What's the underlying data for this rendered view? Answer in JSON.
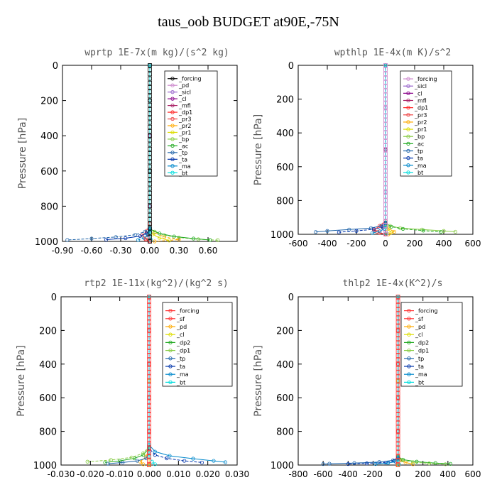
{
  "title": "taus_oob  BUDGET at90E,-75N",
  "chart_data": [
    {
      "type": "line",
      "title": "wprtp   1E-7x(m kg)/(s^2 kg)",
      "ylabel": "Pressure [hPa]",
      "xlim": [
        -0.9,
        0.9
      ],
      "ylim": [
        0,
        1000
      ],
      "y_inverted": true,
      "xticks": [
        -0.9,
        -0.6,
        -0.3,
        0.0,
        0.3,
        0.6
      ],
      "xtick_labels": [
        "-0.90",
        "-0.60",
        "-0.30",
        "0.00",
        "0.30",
        "0.60"
      ],
      "yticks": [
        0,
        200,
        400,
        600,
        800,
        1000
      ],
      "ytick_labels": [
        "0",
        "200",
        "400",
        "600",
        "800",
        "1000"
      ],
      "series": [
        {
          "name": "_forcing",
          "color": "#000000",
          "x": [
            0,
            0,
            0,
            0,
            0,
            0
          ],
          "y": [
            0,
            200,
            400,
            600,
            800,
            1000
          ]
        },
        {
          "name": "_pd",
          "color": "#cc88cc",
          "x": [
            0,
            0,
            0,
            0
          ],
          "y": [
            0,
            400,
            800,
            1000
          ]
        },
        {
          "name": "_sicl",
          "color": "#9966cc",
          "x": [
            0,
            0,
            0,
            0
          ],
          "y": [
            0,
            400,
            800,
            1000
          ]
        },
        {
          "name": "_cl",
          "color": "#880088",
          "x": [
            0,
            0,
            0,
            0
          ],
          "y": [
            0,
            400,
            800,
            1000
          ]
        },
        {
          "name": "_mfl",
          "color": "#aa2266",
          "x": [
            0,
            0,
            0,
            0
          ],
          "y": [
            0,
            400,
            800,
            1000
          ]
        },
        {
          "name": "_dp1",
          "color": "#ff2222",
          "x": [
            0,
            0,
            -0.03,
            -0.08,
            -0.04,
            0
          ],
          "y": [
            0,
            900,
            940,
            965,
            990,
            1000
          ]
        },
        {
          "name": "_pr3",
          "color": "#ee4444",
          "x": [
            0,
            0,
            -0.02,
            -0.05,
            0
          ],
          "y": [
            0,
            930,
            960,
            985,
            1000
          ]
        },
        {
          "name": "_pr2",
          "color": "#ffaa00",
          "x": [
            0,
            0,
            0.05,
            0.15,
            0.3,
            0.05
          ],
          "y": [
            0,
            920,
            950,
            975,
            990,
            1000
          ]
        },
        {
          "name": "_pr1",
          "color": "#dddd00",
          "x": [
            0,
            0,
            0.03,
            0.1,
            0.2
          ],
          "y": [
            0,
            930,
            960,
            980,
            995
          ]
        },
        {
          "name": "_bp",
          "color": "#88cc44",
          "x": [
            0,
            0,
            0.05,
            0.15,
            0.3,
            0.5,
            0.7
          ],
          "y": [
            0,
            920,
            945,
            965,
            978,
            988,
            993
          ]
        },
        {
          "name": "_ac",
          "color": "#22aa22",
          "x": [
            0,
            0,
            0.1,
            0.25,
            0.45,
            0.62
          ],
          "y": [
            0,
            930,
            955,
            972,
            984,
            992
          ]
        },
        {
          "name": "_tp",
          "color": "#2266aa",
          "x": [
            0,
            0,
            -0.05,
            -0.15,
            -0.35,
            -0.6,
            -0.85
          ],
          "y": [
            0,
            920,
            945,
            962,
            975,
            984,
            992
          ]
        },
        {
          "name": "_ta",
          "color": "#0033aa",
          "x": [
            0,
            0,
            -0.03,
            -0.1,
            -0.25,
            -0.45
          ],
          "y": [
            0,
            930,
            955,
            970,
            982,
            990
          ]
        },
        {
          "name": "_ma",
          "color": "#0088cc",
          "x": [
            0,
            0,
            -0.02,
            -0.06,
            -0.12
          ],
          "y": [
            0,
            940,
            965,
            980,
            992
          ]
        },
        {
          "name": "_bt",
          "color": "#00dddd",
          "x": [
            0,
            0,
            0.01
          ],
          "y": [
            0,
            950,
            990
          ]
        }
      ]
    },
    {
      "type": "line",
      "title": "wpthlp   1E-4x(m K)/s^2",
      "ylabel": "Pressure [hPa]",
      "xlim": [
        -600,
        600
      ],
      "ylim": [
        0,
        1000
      ],
      "y_inverted": true,
      "xticks": [
        -600,
        -400,
        -200,
        0,
        200,
        400,
        600
      ],
      "xtick_labels": [
        "-600",
        "-400",
        "-200",
        "0",
        "200",
        "400",
        "600"
      ],
      "yticks": [
        0,
        200,
        400,
        600,
        800,
        1000
      ],
      "ytick_labels": [
        "0",
        "200",
        "400",
        "600",
        "800",
        "1000"
      ],
      "series": [
        {
          "name": "_forcing",
          "color": "#cc88cc",
          "x": [
            0,
            0,
            0,
            0,
            0
          ],
          "y": [
            0,
            250,
            500,
            750,
            1000
          ]
        },
        {
          "name": "_sicl",
          "color": "#9966cc",
          "x": [
            0,
            0,
            0
          ],
          "y": [
            0,
            500,
            1000
          ]
        },
        {
          "name": "_cl",
          "color": "#880088",
          "x": [
            0,
            0,
            0
          ],
          "y": [
            0,
            500,
            1000
          ]
        },
        {
          "name": "_mfl",
          "color": "#aa2266",
          "x": [
            0,
            0,
            0
          ],
          "y": [
            0,
            500,
            1000
          ]
        },
        {
          "name": "_dp1",
          "color": "#ff2222",
          "x": [
            0,
            0,
            -40,
            -80,
            -40,
            0
          ],
          "y": [
            0,
            920,
            950,
            975,
            992,
            1000
          ]
        },
        {
          "name": "_pr3",
          "color": "#ee4444",
          "x": [
            0,
            0,
            -20,
            -60,
            0
          ],
          "y": [
            0,
            930,
            960,
            985,
            1000
          ]
        },
        {
          "name": "_pr2",
          "color": "#ffaa00",
          "x": [
            0,
            0,
            20,
            60,
            20
          ],
          "y": [
            0,
            940,
            965,
            985,
            1000
          ]
        },
        {
          "name": "_pr1",
          "color": "#dddd00",
          "x": [
            0,
            0,
            15,
            40
          ],
          "y": [
            0,
            945,
            970,
            990
          ]
        },
        {
          "name": "_bp",
          "color": "#88cc44",
          "x": [
            0,
            0,
            30,
            100,
            250,
            400,
            480
          ],
          "y": [
            0,
            930,
            950,
            963,
            972,
            980,
            985
          ]
        },
        {
          "name": "_ac",
          "color": "#22aa22",
          "x": [
            0,
            0,
            40,
            120,
            260,
            380
          ],
          "y": [
            0,
            935,
            955,
            968,
            978,
            986
          ]
        },
        {
          "name": "_tp",
          "color": "#2266aa",
          "x": [
            0,
            0,
            -30,
            -100,
            -250,
            -400,
            -480
          ],
          "y": [
            0,
            930,
            950,
            963,
            972,
            980,
            986
          ]
        },
        {
          "name": "_ta",
          "color": "#0033aa",
          "x": [
            0,
            0,
            -20,
            -80,
            -200,
            -320
          ],
          "y": [
            0,
            935,
            958,
            970,
            980,
            988
          ]
        },
        {
          "name": "_ma",
          "color": "#0088cc",
          "x": [
            0,
            0,
            -10,
            -40,
            -90
          ],
          "y": [
            0,
            945,
            968,
            982,
            992
          ]
        },
        {
          "name": "_bt",
          "color": "#00dddd",
          "x": [
            0,
            0,
            5
          ],
          "y": [
            0,
            960,
            995
          ]
        }
      ]
    },
    {
      "type": "line",
      "title": "rtp2   1E-11x(kg^2)/(kg^2 s)",
      "ylabel": "Pressure [hPa]",
      "xlim": [
        -0.03,
        0.03
      ],
      "ylim": [
        0,
        1000
      ],
      "y_inverted": true,
      "xticks": [
        -0.03,
        -0.02,
        -0.01,
        0.0,
        0.01,
        0.02,
        0.03
      ],
      "xtick_labels": [
        "-0.030",
        "-0.020",
        "-0.010",
        "0.000",
        "0.010",
        "0.020",
        "0.030"
      ],
      "yticks": [
        0,
        200,
        400,
        600,
        800,
        1000
      ],
      "ytick_labels": [
        "0",
        "200",
        "400",
        "600",
        "800",
        "1000"
      ],
      "series": [
        {
          "name": "_forcing",
          "color": "#ff3333",
          "x": [
            0,
            0,
            0,
            0,
            0,
            0
          ],
          "y": [
            0,
            200,
            400,
            600,
            800,
            1000
          ]
        },
        {
          "name": "_sf",
          "color": "#ff3333",
          "x": [
            0,
            0,
            0,
            0
          ],
          "y": [
            0,
            400,
            800,
            1000
          ]
        },
        {
          "name": "_pd",
          "color": "#ffaa00",
          "x": [
            0,
            0,
            -0.001,
            -0.003,
            -0.002
          ],
          "y": [
            0,
            900,
            950,
            980,
            995
          ]
        },
        {
          "name": "_cl",
          "color": "#dddd00",
          "x": [
            0,
            0,
            0
          ],
          "y": [
            0,
            500,
            1000
          ]
        },
        {
          "name": "_dp2",
          "color": "#22aa22",
          "x": [
            0,
            0,
            -0.002,
            -0.005,
            -0.01,
            -0.015
          ],
          "y": [
            0,
            900,
            940,
            960,
            975,
            985
          ]
        },
        {
          "name": "_dp1",
          "color": "#88cc44",
          "x": [
            0,
            0,
            -0.002,
            -0.006,
            -0.013,
            -0.021
          ],
          "y": [
            0,
            890,
            930,
            955,
            970,
            980
          ]
        },
        {
          "name": "_tp",
          "color": "#2266aa",
          "x": [
            0,
            0,
            -0.001,
            -0.004,
            -0.009,
            -0.014
          ],
          "y": [
            0,
            930,
            960,
            975,
            985,
            992
          ]
        },
        {
          "name": "_ta",
          "color": "#0033aa",
          "x": [
            0,
            0,
            0.002,
            0.006,
            0.012,
            0.018
          ],
          "y": [
            0,
            900,
            940,
            960,
            975,
            985
          ]
        },
        {
          "name": "_ma",
          "color": "#0088cc",
          "x": [
            0,
            0,
            0.002,
            0.007,
            0.015,
            0.022,
            0.026
          ],
          "y": [
            0,
            880,
            920,
            945,
            962,
            975,
            983
          ]
        },
        {
          "name": "_bt",
          "color": "#00dddd",
          "x": [
            0,
            0,
            0.001,
            0.002
          ],
          "y": [
            0,
            950,
            980,
            995
          ]
        }
      ]
    },
    {
      "type": "line",
      "title": "thlp2   1E-4x(K^2)/s",
      "ylabel": "Pressure [hPa]",
      "xlim": [
        -800,
        600
      ],
      "ylim": [
        0,
        1000
      ],
      "y_inverted": true,
      "xticks": [
        -800,
        -600,
        -400,
        -200,
        0,
        200,
        400,
        600
      ],
      "xtick_labels": [
        "-800",
        "-600",
        "-400",
        "-200",
        "0",
        "200",
        "400",
        "600"
      ],
      "yticks": [
        0,
        200,
        400,
        600,
        800,
        1000
      ],
      "ytick_labels": [
        "0",
        "200",
        "400",
        "600",
        "800",
        "1000"
      ],
      "series": [
        {
          "name": "_forcing",
          "color": "#ff3333",
          "x": [
            0,
            0,
            0,
            0,
            0,
            0
          ],
          "y": [
            0,
            200,
            400,
            600,
            800,
            1000
          ]
        },
        {
          "name": "_sf",
          "color": "#ff3333",
          "x": [
            0,
            0,
            0,
            0
          ],
          "y": [
            0,
            400,
            800,
            1000
          ]
        },
        {
          "name": "_pd",
          "color": "#ffaa00",
          "x": [
            0,
            0,
            20,
            60,
            120
          ],
          "y": [
            0,
            950,
            970,
            985,
            995
          ]
        },
        {
          "name": "_cl",
          "color": "#dddd00",
          "x": [
            0,
            0,
            0
          ],
          "y": [
            0,
            500,
            1000
          ]
        },
        {
          "name": "_dp2",
          "color": "#22aa22",
          "x": [
            0,
            0,
            40,
            150,
            300,
            420
          ],
          "y": [
            0,
            950,
            968,
            980,
            988,
            993
          ]
        },
        {
          "name": "_dp1",
          "color": "#88cc44",
          "x": [
            0,
            0,
            30,
            120,
            250,
            380
          ],
          "y": [
            0,
            955,
            972,
            983,
            990,
            995
          ]
        },
        {
          "name": "_tp",
          "color": "#2266aa",
          "x": [
            0,
            0,
            -40,
            -150,
            -350,
            -550,
            -600
          ],
          "y": [
            0,
            955,
            972,
            982,
            988,
            992,
            994
          ]
        },
        {
          "name": "_ta",
          "color": "#0033aa",
          "x": [
            0,
            0,
            -30,
            -100,
            -250,
            -400
          ],
          "y": [
            0,
            960,
            975,
            985,
            990,
            994
          ]
        },
        {
          "name": "_ma",
          "color": "#0088cc",
          "x": [
            0,
            0,
            -20,
            -80,
            -180
          ],
          "y": [
            0,
            965,
            980,
            988,
            994
          ]
        },
        {
          "name": "_bt",
          "color": "#00dddd",
          "x": [
            0,
            0,
            10
          ],
          "y": [
            0,
            970,
            996
          ]
        }
      ]
    }
  ]
}
